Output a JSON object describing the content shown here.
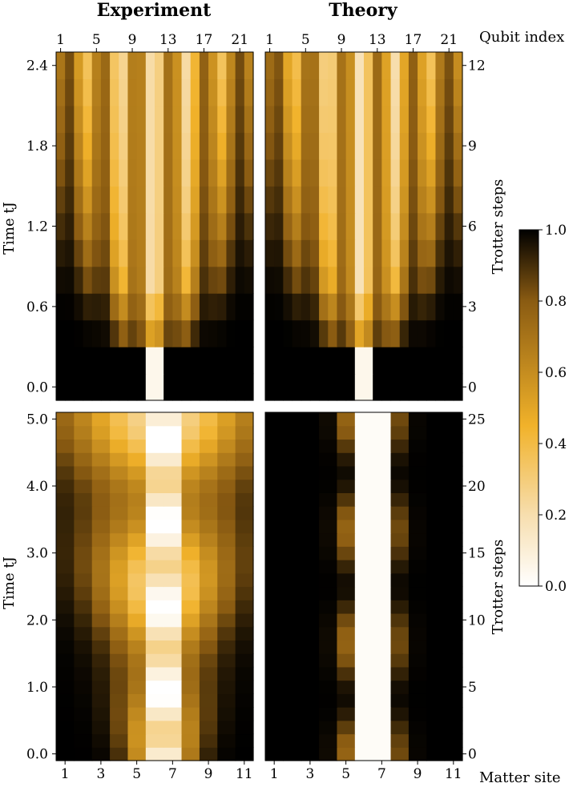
{
  "chart_data": {
    "type": "heatmap",
    "column_titles": [
      "Experiment",
      "Theory"
    ],
    "top_panels": {
      "x_axis_label": "Qubit index",
      "x_ticks": [
        "1",
        "5",
        "9",
        "13",
        "17",
        "21"
      ],
      "n_columns": 22,
      "left_ylabel": "Time tJ",
      "left_yticks": [
        "0.0",
        "0.6",
        "1.2",
        "1.8",
        "2.4"
      ],
      "right_ylabel": "Trotter steps",
      "right_yticks": [
        "0",
        "3",
        "6",
        "9",
        "12"
      ],
      "n_rows": 13
    },
    "bottom_panels": {
      "x_axis_label": "Matter site",
      "x_ticks": [
        "1",
        "3",
        "5",
        "7",
        "9",
        "11"
      ],
      "n_columns": 11,
      "left_ylabel": "Time tJ",
      "left_yticks": [
        "0.0",
        "1.0",
        "2.0",
        "3.0",
        "4.0",
        "5.0"
      ],
      "right_ylabel": "Trotter steps",
      "right_yticks": [
        "0",
        "5",
        "10",
        "15",
        "20",
        "25"
      ],
      "n_rows": 26
    },
    "colorbar": {
      "ticks": [
        "0.0",
        "0.2",
        "0.4",
        "0.6",
        "0.8",
        "1.0"
      ],
      "range": [
        0.0,
        1.0
      ],
      "colors": [
        "#ffffff",
        "#f7deae",
        "#f1b22a",
        "#8a5b12",
        "#000000"
      ]
    }
  }
}
